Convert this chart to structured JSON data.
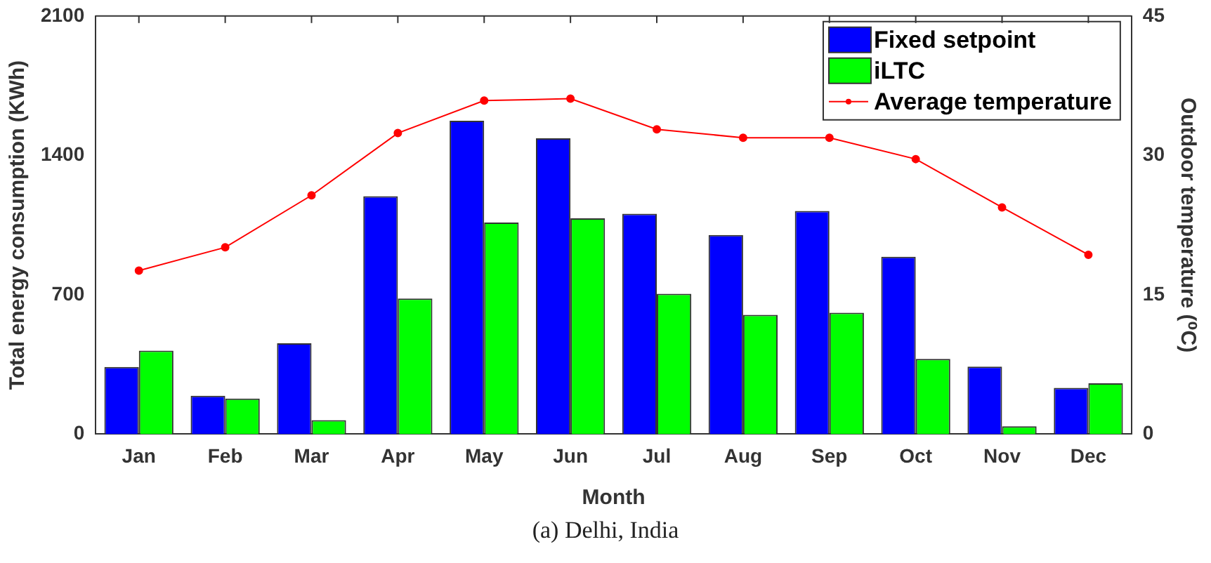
{
  "chart_data": {
    "type": "bar",
    "xlabel": "Month",
    "ylabel": "Total energy consumption (KWh)",
    "y2label": "Outdoor temperature (⁰C)",
    "categories": [
      "Jan",
      "Feb",
      "Mar",
      "Apr",
      "May",
      "Jun",
      "Jul",
      "Aug",
      "Sep",
      "Oct",
      "Nov",
      "Dec"
    ],
    "series": [
      {
        "name": "Fixed setpoint",
        "color": "#0000ff",
        "values": [
          337,
          193,
          456,
          1195,
          1574,
          1486,
          1107,
          1000,
          1121,
          891,
          339,
          232
        ]
      },
      {
        "name": "iLTC",
        "color": "#00ff00",
        "values": [
          419,
          179,
          70,
          681,
          1063,
          1084,
          705,
          599,
          610,
          378,
          39,
          255
        ]
      },
      {
        "name": "Average temperature",
        "type": "line",
        "axis": "y2",
        "color": "#ff0000",
        "marker": "circle",
        "values": [
          17.6,
          20.1,
          25.7,
          32.4,
          35.9,
          36.1,
          32.8,
          31.9,
          31.9,
          29.6,
          24.4,
          19.3
        ]
      }
    ],
    "ylim": [
      0,
      2100
    ],
    "yticks": [
      0,
      700,
      1400,
      2100
    ],
    "y2lim": [
      0,
      45
    ],
    "y2ticks": [
      0,
      15,
      30,
      45
    ],
    "grid": false,
    "legend": "top right",
    "annotations": [
      "(a) Delhi, India"
    ]
  }
}
